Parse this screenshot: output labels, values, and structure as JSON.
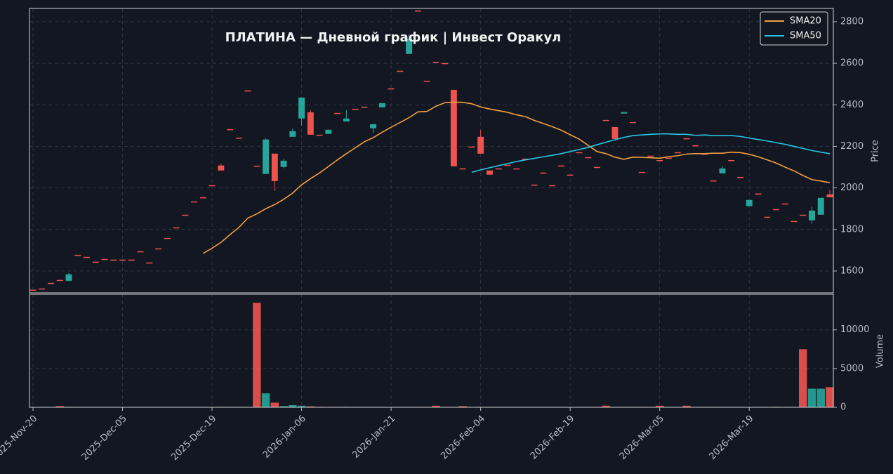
{
  "chart_data": {
    "type": "candlestick",
    "title": "ПЛАТИНА  —  Дневной график  |  Инвест Оракул",
    "categories": [
      "2025-Nov-20",
      null,
      null,
      null,
      null,
      null,
      null,
      null,
      null,
      null,
      "2025-Dec-05",
      null,
      null,
      null,
      null,
      null,
      null,
      null,
      null,
      null,
      "2025-Dec-19",
      null,
      null,
      null,
      null,
      null,
      null,
      null,
      null,
      null,
      "2026-Jan-06",
      null,
      null,
      null,
      null,
      null,
      null,
      null,
      null,
      null,
      "2026-Jan-21",
      null,
      null,
      null,
      null,
      null,
      null,
      null,
      null,
      null,
      "2026-Feb-04",
      null,
      null,
      null,
      null,
      null,
      null,
      null,
      null,
      null,
      "2026-Feb-19",
      null,
      null,
      null,
      null,
      null,
      null,
      null,
      null,
      null,
      "2026-Mar-05",
      null,
      null,
      null,
      null,
      null,
      null,
      null,
      null,
      null,
      "2026-Mar-19",
      null,
      null,
      null,
      null,
      null,
      null,
      null,
      null,
      null
    ],
    "open": [
      1510,
      1516,
      1543,
      1557,
      1553,
      1678,
      1668,
      1645,
      1658,
      1655,
      1655,
      1655,
      1695,
      1641,
      1709,
      1759,
      1810,
      1871,
      1935,
      1955,
      2013,
      2108,
      2283,
      2242,
      2469,
      2107,
      2067,
      2165,
      2101,
      2246,
      2334,
      2364,
      2256,
      2260,
      2361,
      2320,
      2381,
      2391,
      2287,
      2388,
      2479,
      2564,
      2645,
      2854,
      2516,
      2607,
      2601,
      2472,
      2094,
      2199,
      2246,
      2084,
      2094,
      2111,
      2094,
      2141,
      2016,
      2074,
      2013,
      2108,
      2064,
      2172,
      2148,
      2101,
      2327,
      2293,
      2358,
      2317,
      2077,
      2155,
      2134,
      2145,
      2172,
      2239,
      2205,
      2165,
      2036,
      2070,
      2134,
      2053,
      1912,
      1973,
      1861,
      1898,
      1925,
      1841,
      1871,
      1844,
      1871,
      1969
    ],
    "high": [
      1510,
      1516,
      1543,
      1557,
      1590,
      1678,
      1668,
      1645,
      1658,
      1655,
      1655,
      1655,
      1695,
      1641,
      1709,
      1759,
      1810,
      1871,
      1935,
      1955,
      2013,
      2118,
      2283,
      2242,
      2469,
      2107,
      2240,
      2165,
      2140,
      2285,
      2435,
      2375,
      2256,
      2280,
      2361,
      2375,
      2381,
      2391,
      2307,
      2408,
      2479,
      2564,
      2740,
      2854,
      2516,
      2607,
      2601,
      2472,
      2094,
      2199,
      2280,
      2084,
      2094,
      2111,
      2094,
      2141,
      2016,
      2074,
      2013,
      2108,
      2064,
      2172,
      2148,
      2101,
      2327,
      2293,
      2365,
      2317,
      2077,
      2155,
      2134,
      2145,
      2172,
      2239,
      2205,
      2165,
      2036,
      2105,
      2134,
      2053,
      1942,
      1973,
      1861,
      1898,
      1925,
      1841,
      1871,
      1910,
      1952,
      1990
    ],
    "low": [
      1510,
      1516,
      1543,
      1557,
      1550,
      1678,
      1668,
      1645,
      1658,
      1655,
      1655,
      1655,
      1695,
      1641,
      1709,
      1759,
      1810,
      1871,
      1935,
      1955,
      2013,
      2084,
      2283,
      2242,
      2469,
      2107,
      2067,
      1985,
      2095,
      2246,
      2300,
      2256,
      2256,
      2260,
      2361,
      2320,
      2381,
      2391,
      2265,
      2388,
      2479,
      2564,
      2645,
      2854,
      2516,
      2607,
      2601,
      2104,
      2094,
      2199,
      2165,
      2064,
      2094,
      2111,
      2094,
      2141,
      2016,
      2074,
      2013,
      2108,
      2064,
      2172,
      2148,
      2101,
      2327,
      2236,
      2358,
      2317,
      2077,
      2155,
      2134,
      2145,
      2172,
      2239,
      2205,
      2165,
      2036,
      2070,
      2134,
      2053,
      1912,
      1973,
      1861,
      1898,
      1925,
      1841,
      1871,
      1828,
      1871,
      1955
    ],
    "close": [
      1510,
      1516,
      1543,
      1557,
      1584,
      1678,
      1668,
      1645,
      1658,
      1655,
      1655,
      1655,
      1695,
      1641,
      1709,
      1759,
      1810,
      1871,
      1935,
      1955,
      2013,
      2084,
      2283,
      2242,
      2469,
      2107,
      2233,
      2033,
      2131,
      2273,
      2435,
      2256,
      2256,
      2280,
      2361,
      2334,
      2381,
      2391,
      2307,
      2408,
      2479,
      2564,
      2719,
      2854,
      2516,
      2607,
      2601,
      2104,
      2094,
      2199,
      2165,
      2064,
      2094,
      2111,
      2094,
      2141,
      2016,
      2074,
      2013,
      2108,
      2064,
      2172,
      2148,
      2101,
      2327,
      2236,
      2365,
      2317,
      2077,
      2155,
      2134,
      2145,
      2172,
      2239,
      2205,
      2165,
      2036,
      2094,
      2134,
      2053,
      1942,
      1973,
      1861,
      1898,
      1925,
      1841,
      1871,
      1891,
      1952,
      1955
    ],
    "up_color": "#26a69a",
    "down_color": "#ef5350",
    "series": [
      {
        "name": "SMA20",
        "color": "#f0a040",
        "values": [
          null,
          null,
          null,
          null,
          null,
          null,
          null,
          null,
          null,
          null,
          null,
          null,
          null,
          null,
          null,
          null,
          null,
          null,
          null,
          1685,
          1710,
          1738,
          1775,
          1810,
          1855,
          1875,
          1900,
          1920,
          1945,
          1975,
          2015,
          2045,
          2072,
          2103,
          2135,
          2165,
          2193,
          2222,
          2242,
          2268,
          2292,
          2315,
          2338,
          2366,
          2368,
          2393,
          2410,
          2413,
          2412,
          2405,
          2390,
          2380,
          2372,
          2364,
          2352,
          2343,
          2325,
          2310,
          2295,
          2278,
          2256,
          2235,
          2205,
          2175,
          2165,
          2148,
          2138,
          2148,
          2147,
          2145,
          2143,
          2150,
          2155,
          2163,
          2165,
          2165,
          2167,
          2167,
          2172,
          2170,
          2162,
          2150,
          2135,
          2120,
          2100,
          2082,
          2060,
          2040,
          2033,
          2025
        ]
      },
      {
        "name": "SMA50",
        "color": "#29c5e6",
        "values": [
          null,
          null,
          null,
          null,
          null,
          null,
          null,
          null,
          null,
          null,
          null,
          null,
          null,
          null,
          null,
          null,
          null,
          null,
          null,
          null,
          null,
          null,
          null,
          null,
          null,
          null,
          null,
          null,
          null,
          null,
          null,
          null,
          null,
          null,
          null,
          null,
          null,
          null,
          null,
          null,
          null,
          null,
          null,
          null,
          null,
          null,
          null,
          null,
          null,
          2075,
          2087,
          2097,
          2107,
          2117,
          2127,
          2135,
          2142,
          2150,
          2157,
          2165,
          2175,
          2185,
          2195,
          2208,
          2220,
          2232,
          2243,
          2252,
          2255,
          2258,
          2260,
          2260,
          2258,
          2258,
          2253,
          2255,
          2252,
          2252,
          2252,
          2248,
          2240,
          2233,
          2226,
          2218,
          2210,
          2200,
          2190,
          2180,
          2172,
          2165
        ]
      }
    ],
    "ylabel": "Price",
    "ylim": [
      1495,
      2864
    ],
    "yticks": [
      1600,
      1800,
      2000,
      2200,
      2400,
      2600,
      2800
    ],
    "grid": true,
    "legend": "upper right",
    "volume": {
      "ylabel": "Volume",
      "values": [
        0,
        0,
        30,
        150,
        60,
        0,
        0,
        0,
        0,
        0,
        0,
        0,
        0,
        0,
        0,
        0,
        0,
        0,
        0,
        0,
        0,
        60,
        0,
        0,
        0,
        13500,
        1800,
        600,
        150,
        280,
        200,
        120,
        60,
        40,
        40,
        60,
        30,
        0,
        40,
        40,
        40,
        40,
        50,
        30,
        0,
        200,
        0,
        0,
        150,
        40,
        60,
        40,
        40,
        0,
        0,
        0,
        0,
        0,
        0,
        0,
        0,
        0,
        0,
        0,
        200,
        40,
        40,
        40,
        0,
        0,
        200,
        0,
        0,
        200,
        0,
        0,
        0,
        0,
        0,
        0,
        40,
        0,
        0,
        60,
        0,
        0,
        7500,
        2400,
        2400,
        2600
      ],
      "ylim": [
        0,
        14600
      ],
      "yticks": [
        0,
        5000,
        10000
      ]
    }
  }
}
